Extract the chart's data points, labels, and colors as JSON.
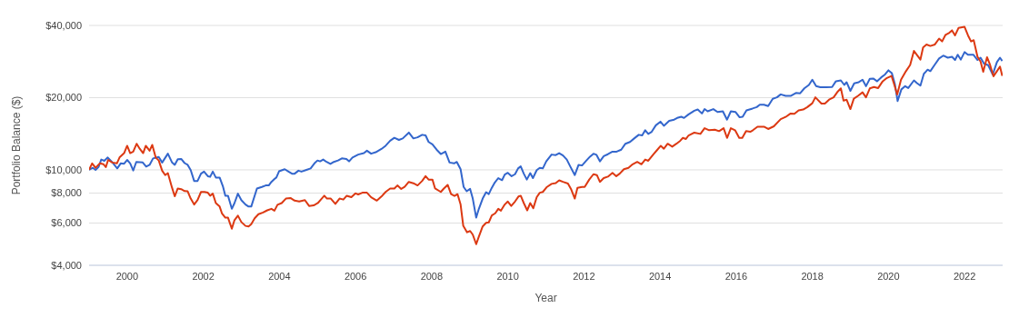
{
  "chart_data": {
    "type": "line",
    "xlabel": "Year",
    "ylabel": "Portfolio Balance ($)",
    "log": "y",
    "grid": "y",
    "xlim": [
      1999,
      2023
    ],
    "xticks": [
      2000,
      2002,
      2004,
      2006,
      2008,
      2010,
      2012,
      2014,
      2016,
      2018,
      2020,
      2022
    ],
    "ylim": [
      4000,
      40000
    ],
    "yticks": [
      {
        "value": 4000,
        "label": "$4,000"
      },
      {
        "value": 6000,
        "label": "$6,000"
      },
      {
        "value": 8000,
        "label": "$8,000"
      },
      {
        "value": 10000,
        "label": "$10,000"
      },
      {
        "value": 20000,
        "label": "$20,000"
      },
      {
        "value": 40000,
        "label": "$40,000"
      }
    ],
    "series": [
      {
        "color": "#3366cc",
        "x": [
          1999.0,
          1999.1,
          1999.17,
          1999.25,
          1999.32,
          1999.4,
          1999.49,
          1999.6,
          1999.74,
          1999.83,
          1999.92,
          2000.0,
          2000.08,
          2000.16,
          2000.24,
          2000.41,
          2000.5,
          2000.59,
          2000.68,
          2000.83,
          2000.92,
          2001.07,
          2001.18,
          2001.25,
          2001.33,
          2001.42,
          2001.51,
          2001.59,
          2001.67,
          2001.76,
          2001.85,
          2001.94,
          2002.02,
          2002.12,
          2002.18,
          2002.25,
          2002.33,
          2002.43,
          2002.52,
          2002.58,
          2002.65,
          2002.75,
          2002.82,
          2002.91,
          2003.0,
          2003.11,
          2003.19,
          2003.26,
          2003.41,
          2003.54,
          2003.64,
          2003.72,
          2003.79,
          2003.87,
          2003.92,
          2003.99,
          2004.14,
          2004.24,
          2004.33,
          2004.4,
          2004.5,
          2004.58,
          2004.71,
          2004.82,
          2004.92,
          2005.0,
          2005.07,
          2005.15,
          2005.24,
          2005.34,
          2005.43,
          2005.54,
          2005.64,
          2005.76,
          2005.83,
          2005.92,
          2006.07,
          2006.22,
          2006.3,
          2006.41,
          2006.53,
          2006.68,
          2006.79,
          2006.91,
          2007.02,
          2007.14,
          2007.24,
          2007.4,
          2007.52,
          2007.63,
          2007.75,
          2007.84,
          2007.92,
          2008.02,
          2008.13,
          2008.24,
          2008.36,
          2008.47,
          2008.59,
          2008.66,
          2008.76,
          2008.84,
          2008.92,
          2009.01,
          2009.08,
          2009.17,
          2009.24,
          2009.34,
          2009.43,
          2009.5,
          2009.58,
          2009.66,
          2009.75,
          2009.85,
          2009.92,
          2010.0,
          2010.1,
          2010.19,
          2010.27,
          2010.34,
          2010.42,
          2010.5,
          2010.59,
          2010.66,
          2010.76,
          2010.84,
          2010.92,
          2011.01,
          2011.15,
          2011.26,
          2011.35,
          2011.45,
          2011.55,
          2011.64,
          2011.76,
          2011.86,
          2011.95,
          2012.06,
          2012.16,
          2012.25,
          2012.33,
          2012.42,
          2012.52,
          2012.63,
          2012.75,
          2012.86,
          2012.98,
          2013.09,
          2013.21,
          2013.32,
          2013.44,
          2013.53,
          2013.61,
          2013.69,
          2013.78,
          2013.89,
          2014.01,
          2014.1,
          2014.24,
          2014.37,
          2014.45,
          2014.56,
          2014.63,
          2014.75,
          2014.9,
          2014.99,
          2015.1,
          2015.17,
          2015.25,
          2015.4,
          2015.51,
          2015.65,
          2015.76,
          2015.86,
          2015.98,
          2016.09,
          2016.17,
          2016.27,
          2016.43,
          2016.54,
          2016.62,
          2016.73,
          2016.84,
          2016.96,
          2017.07,
          2017.17,
          2017.3,
          2017.43,
          2017.57,
          2017.68,
          2017.79,
          2017.91,
          2018.0,
          2018.1,
          2018.21,
          2018.37,
          2018.52,
          2018.62,
          2018.75,
          2018.84,
          2018.9,
          2019.0,
          2019.1,
          2019.22,
          2019.32,
          2019.41,
          2019.51,
          2019.6,
          2019.7,
          2019.81,
          2019.91,
          2020.0,
          2020.09,
          2020.17,
          2020.24,
          2020.34,
          2020.44,
          2020.52,
          2020.67,
          2020.75,
          2020.84,
          2020.93,
          2021.03,
          2021.1,
          2021.22,
          2021.33,
          2021.44,
          2021.56,
          2021.67,
          2021.75,
          2021.82,
          2021.9,
          2022.0,
          2022.09,
          2022.23,
          2022.34,
          2022.42,
          2022.51,
          2022.62,
          2022.74,
          2022.85,
          2022.93,
          2022.99
        ],
        "values": [
          10000,
          10200,
          10000,
          10280,
          11040,
          10910,
          11260,
          10790,
          10140,
          10640,
          10610,
          11000,
          10640,
          9940,
          10790,
          10730,
          10310,
          10490,
          11160,
          11320,
          10730,
          11680,
          10730,
          10490,
          11080,
          11100,
          10670,
          10490,
          9970,
          8990,
          8990,
          9640,
          9830,
          9410,
          9350,
          9830,
          9290,
          9290,
          8490,
          7800,
          7800,
          6880,
          7270,
          7960,
          7480,
          7170,
          7030,
          7030,
          8360,
          8490,
          8610,
          8610,
          8910,
          9160,
          9290,
          9860,
          10060,
          9830,
          9640,
          9640,
          9920,
          9830,
          10000,
          10140,
          10640,
          10940,
          10850,
          11040,
          10790,
          10580,
          10790,
          10940,
          11160,
          11100,
          10850,
          11260,
          11580,
          11740,
          12020,
          11680,
          11840,
          12220,
          12600,
          13220,
          13600,
          13330,
          13520,
          14300,
          13520,
          13670,
          14000,
          13920,
          13070,
          12780,
          12140,
          11640,
          11910,
          10730,
          10640,
          10790,
          10060,
          8490,
          8140,
          8330,
          7590,
          6320,
          6880,
          7590,
          8070,
          7920,
          8420,
          8860,
          9240,
          9060,
          9560,
          9720,
          9410,
          9590,
          10140,
          10340,
          9640,
          9110,
          9690,
          9240,
          9970,
          10200,
          10140,
          10850,
          11580,
          11520,
          11740,
          11480,
          11040,
          10340,
          9510,
          10490,
          10430,
          10910,
          11350,
          11680,
          11550,
          10850,
          11410,
          11620,
          11910,
          11910,
          12140,
          12850,
          13070,
          13520,
          14000,
          13920,
          14630,
          14120,
          14410,
          15340,
          15880,
          15260,
          16010,
          16190,
          16460,
          16650,
          16460,
          17030,
          17640,
          17850,
          17180,
          17920,
          17540,
          17920,
          17430,
          17540,
          16190,
          17540,
          17430,
          16560,
          16650,
          17690,
          18020,
          18270,
          18680,
          18680,
          18450,
          19790,
          20060,
          20630,
          20340,
          20340,
          20920,
          20860,
          21860,
          22590,
          23750,
          22330,
          22090,
          22090,
          22150,
          23410,
          23600,
          22590,
          23200,
          21350,
          22940,
          23200,
          23750,
          22330,
          23960,
          24030,
          23410,
          24300,
          24990,
          26000,
          25280,
          22730,
          19370,
          21650,
          22330,
          21930,
          23600,
          23000,
          22450,
          25130,
          26160,
          25790,
          27480,
          29120,
          29940,
          29350,
          29600,
          28710,
          30200,
          28820,
          30950,
          30200,
          30200,
          28710,
          29350,
          27740,
          27300,
          24990,
          28130,
          29350,
          28430
        ]
      },
      {
        "color": "#dc3912",
        "x": [
          1999.0,
          1999.08,
          1999.17,
          1999.28,
          1999.38,
          1999.44,
          1999.5,
          1999.61,
          1999.73,
          1999.8,
          1999.92,
          2000.0,
          2000.08,
          2000.16,
          2000.25,
          2000.33,
          2000.42,
          2000.49,
          2000.59,
          2000.66,
          2000.75,
          2000.83,
          2000.92,
          2001.0,
          2001.07,
          2001.18,
          2001.25,
          2001.33,
          2001.42,
          2001.51,
          2001.59,
          2001.67,
          2001.76,
          2001.85,
          2001.94,
          2002.03,
          2002.12,
          2002.18,
          2002.25,
          2002.33,
          2002.43,
          2002.49,
          2002.58,
          2002.65,
          2002.75,
          2002.82,
          2002.91,
          2003.0,
          2003.11,
          2003.19,
          2003.26,
          2003.35,
          2003.45,
          2003.57,
          2003.68,
          2003.79,
          2003.87,
          2003.95,
          2004.06,
          2004.17,
          2004.29,
          2004.4,
          2004.52,
          2004.67,
          2004.78,
          2004.9,
          2005.01,
          2005.09,
          2005.18,
          2005.25,
          2005.35,
          2005.47,
          2005.58,
          2005.68,
          2005.77,
          2005.89,
          2006.0,
          2006.07,
          2006.18,
          2006.3,
          2006.41,
          2006.56,
          2006.68,
          2006.79,
          2006.91,
          2007.02,
          2007.1,
          2007.2,
          2007.29,
          2007.4,
          2007.52,
          2007.63,
          2007.75,
          2007.84,
          2007.92,
          2008.02,
          2008.09,
          2008.24,
          2008.32,
          2008.42,
          2008.51,
          2008.6,
          2008.68,
          2008.76,
          2008.83,
          2008.93,
          2009.01,
          2009.08,
          2009.17,
          2009.24,
          2009.34,
          2009.43,
          2009.5,
          2009.58,
          2009.67,
          2009.75,
          2009.82,
          2009.92,
          2010.0,
          2010.09,
          2010.19,
          2010.28,
          2010.34,
          2010.42,
          2010.51,
          2010.59,
          2010.67,
          2010.76,
          2010.84,
          2010.92,
          2011.03,
          2011.15,
          2011.26,
          2011.35,
          2011.45,
          2011.58,
          2011.66,
          2011.76,
          2011.83,
          2011.95,
          2012.02,
          2012.14,
          2012.25,
          2012.34,
          2012.42,
          2012.52,
          2012.63,
          2012.75,
          2012.85,
          2012.94,
          2013.05,
          2013.17,
          2013.28,
          2013.4,
          2013.51,
          2013.61,
          2013.69,
          2013.82,
          2013.92,
          2014.02,
          2014.1,
          2014.2,
          2014.32,
          2014.43,
          2014.53,
          2014.6,
          2014.68,
          2014.75,
          2014.9,
          2015.06,
          2015.17,
          2015.29,
          2015.44,
          2015.55,
          2015.67,
          2015.76,
          2015.86,
          2015.97,
          2016.08,
          2016.16,
          2016.26,
          2016.37,
          2016.44,
          2016.56,
          2016.73,
          2016.84,
          2016.99,
          2017.17,
          2017.3,
          2017.43,
          2017.53,
          2017.64,
          2017.76,
          2017.87,
          2018.0,
          2018.08,
          2018.24,
          2018.33,
          2018.44,
          2018.56,
          2018.67,
          2018.75,
          2018.82,
          2018.9,
          2019.0,
          2019.09,
          2019.2,
          2019.32,
          2019.41,
          2019.51,
          2019.62,
          2019.73,
          2019.85,
          2019.96,
          2020.08,
          2020.15,
          2020.23,
          2020.33,
          2020.46,
          2020.57,
          2020.67,
          2020.76,
          2020.84,
          2020.91,
          2021.0,
          2021.1,
          2021.22,
          2021.33,
          2021.41,
          2021.5,
          2021.6,
          2021.67,
          2021.75,
          2021.84,
          2022.0,
          2022.09,
          2022.17,
          2022.24,
          2022.34,
          2022.42,
          2022.49,
          2022.59,
          2022.67,
          2022.76,
          2022.85,
          2022.93,
          2022.99
        ],
        "values": [
          10000,
          10640,
          10200,
          10640,
          10550,
          10260,
          11000,
          10730,
          10640,
          11260,
          11740,
          12600,
          11740,
          11910,
          12850,
          12250,
          11740,
          12600,
          12020,
          12710,
          11260,
          10940,
          9920,
          9510,
          9690,
          8420,
          7760,
          8360,
          8310,
          8160,
          8140,
          7590,
          7170,
          7480,
          8090,
          8090,
          8030,
          7800,
          7960,
          7270,
          7030,
          6590,
          6320,
          6320,
          5680,
          6170,
          6440,
          6060,
          5840,
          5810,
          5940,
          6280,
          6530,
          6640,
          6780,
          6880,
          6760,
          7150,
          7270,
          7590,
          7630,
          7440,
          7380,
          7480,
          7070,
          7110,
          7270,
          7520,
          7800,
          7590,
          7590,
          7210,
          7590,
          7520,
          7800,
          7690,
          7980,
          7900,
          8030,
          8030,
          7690,
          7440,
          7740,
          8090,
          8360,
          8360,
          8610,
          8330,
          8490,
          8910,
          8790,
          8610,
          8990,
          9410,
          9110,
          9110,
          8360,
          8090,
          8360,
          8660,
          7920,
          7780,
          7920,
          7170,
          5840,
          5490,
          5560,
          5370,
          4900,
          5270,
          5810,
          6010,
          6040,
          6460,
          6590,
          6880,
          6760,
          7170,
          7380,
          7070,
          7380,
          7740,
          7800,
          7270,
          6780,
          7270,
          6920,
          7690,
          8030,
          8090,
          8490,
          8740,
          8800,
          9040,
          8910,
          8770,
          8330,
          7590,
          8420,
          8490,
          8490,
          9110,
          9590,
          9510,
          8910,
          9240,
          9370,
          9720,
          9410,
          9640,
          10060,
          10200,
          10550,
          10790,
          10550,
          11040,
          10910,
          11580,
          12080,
          12600,
          12250,
          12850,
          12500,
          12850,
          13220,
          13590,
          13450,
          13920,
          14300,
          14120,
          14920,
          14630,
          14710,
          14500,
          14920,
          13590,
          14920,
          14630,
          13590,
          13590,
          14500,
          14410,
          14630,
          15130,
          15130,
          14800,
          15190,
          16270,
          16620,
          17180,
          17130,
          17690,
          17850,
          18270,
          18960,
          20060,
          18890,
          18890,
          19620,
          20060,
          21220,
          21860,
          19450,
          19620,
          17920,
          19790,
          20340,
          21040,
          20060,
          21860,
          22150,
          21930,
          23410,
          24160,
          24640,
          22730,
          20630,
          23750,
          25790,
          27380,
          31310,
          29940,
          28820,
          32390,
          33320,
          32840,
          33320,
          35250,
          34310,
          36560,
          37300,
          38160,
          36360,
          39020,
          39460,
          36360,
          34300,
          34730,
          29600,
          28300,
          25640,
          29480,
          27380,
          24560,
          25790,
          26950,
          24640
        ]
      }
    ]
  }
}
